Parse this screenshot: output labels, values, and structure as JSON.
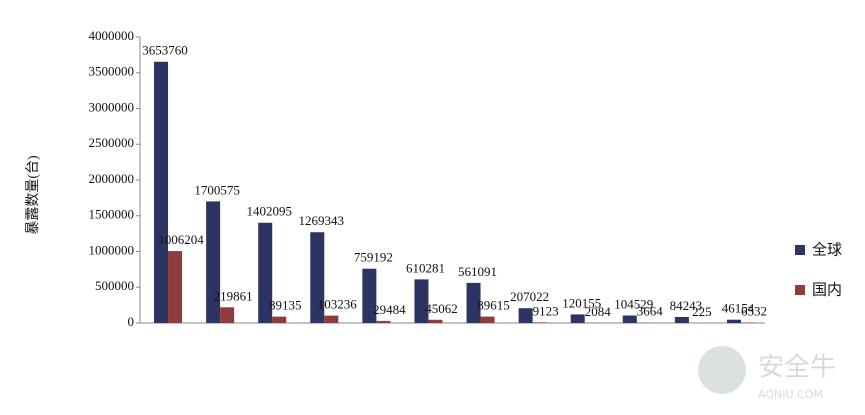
{
  "chart_data": {
    "type": "bar",
    "y_label": "暴露数量(台)",
    "categories": [
      null,
      null,
      null,
      null,
      null,
      null,
      null,
      null,
      null,
      null,
      null,
      null
    ],
    "series": [
      {
        "name": "全球",
        "color": "#2b3462",
        "values": [
          3653760,
          1700575,
          1402095,
          1269343,
          759192,
          610281,
          561091,
          207022,
          120155,
          104529,
          84243,
          46154
        ]
      },
      {
        "name": "国内",
        "color": "#8e3c3c",
        "values": [
          1006204,
          219861,
          89135,
          103236,
          29484,
          45062,
          89615,
          9123,
          2084,
          3664,
          225,
          6532
        ]
      }
    ],
    "ylim": [
      0,
      4000000
    ],
    "yticks": [
      0,
      500000,
      1000000,
      1500000,
      2000000,
      2500000,
      3000000,
      3500000,
      4000000
    ],
    "grid": false,
    "legend": "right",
    "watermark": {
      "name": "安全牛",
      "site": "AQNIU.COM"
    }
  }
}
